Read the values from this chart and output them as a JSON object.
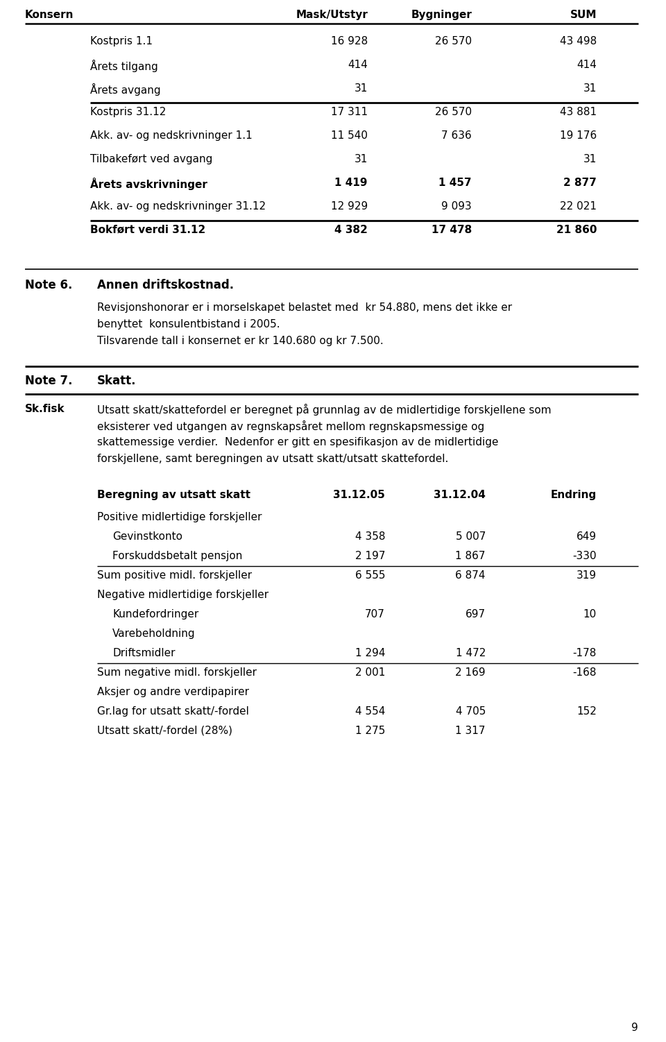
{
  "bg_color": "#ffffff",
  "page_number": "9",
  "section1_header": {
    "col0": "Konsern",
    "col1": "Mask/Utstyr",
    "col2": "Bygninger",
    "col3": "SUM"
  },
  "section1_rows": [
    {
      "label": "Kostpris 1.1",
      "c1": "16 928",
      "c2": "26 570",
      "c3": "43 498",
      "bold": false,
      "line_after": false
    },
    {
      "label": "Årets tilgang",
      "c1": "414",
      "c2": "",
      "c3": "414",
      "bold": false,
      "line_after": false
    },
    {
      "label": "Årets avgang",
      "c1": "31",
      "c2": "",
      "c3": "31",
      "bold": false,
      "line_after": true
    },
    {
      "label": "Kostpris 31.12",
      "c1": "17 311",
      "c2": "26 570",
      "c3": "43 881",
      "bold": false,
      "line_after": false
    },
    {
      "label": "Akk. av- og nedskrivninger 1.1",
      "c1": "11 540",
      "c2": "7 636",
      "c3": "19 176",
      "bold": false,
      "line_after": false
    },
    {
      "label": "Tilbakeført ved avgang",
      "c1": "31",
      "c2": "",
      "c3": "31",
      "bold": false,
      "line_after": false
    },
    {
      "label": "Årets avskrivninger",
      "c1": "1 419",
      "c2": "1 457",
      "c3": "2 877",
      "bold": true,
      "line_after": false
    },
    {
      "label": "Akk. av- og nedskrivninger 31.12",
      "c1": "12 929",
      "c2": "9 093",
      "c3": "22 021",
      "bold": false,
      "line_after": true
    },
    {
      "label": "Bokført verdi 31.12",
      "c1": "4 382",
      "c2": "17 478",
      "c3": "21 860",
      "bold": true,
      "line_after": false
    }
  ],
  "note6_label": "Note 6.",
  "note6_title": "Annen driftskostnad.",
  "note6_text1": "Revisjonshonorar er i morselskapet belastet med  kr 54.880, mens det ikke er",
  "note6_text2": "benyttet  konsulentbistand i 2005.",
  "note6_text3": "Tilsvarende tall i konsernet er kr 140.680 og kr 7.500.",
  "note7_label": "Note 7.",
  "note7_title": "Skatt.",
  "skfisk_label": "Sk.fisk",
  "skfisk_lines": [
    "Utsatt skatt/skattefordel er beregnet på grunnlag av de midlertidige forskjellene som",
    "eksisterer ved utgangen av regnskapsåret mellom regnskapsmessige og",
    "skattemessige verdier.  Nedenfor er gitt en spesifikasjon av de midlertidige",
    "forskjellene, samt beregningen av utsatt skatt/utsatt skattefordel."
  ],
  "table2_header": {
    "col0": "Beregning av utsatt skatt",
    "col1": "31.12.05",
    "col2": "31.12.04",
    "col3": "Endring"
  },
  "table2_rows": [
    {
      "label": "Positive midlertidige forskjeller",
      "c1": "",
      "c2": "",
      "c3": "",
      "bold": false,
      "indent": false,
      "line_after": false
    },
    {
      "label": "Gevinstkonto",
      "c1": "4 358",
      "c2": "5 007",
      "c3": "649",
      "bold": false,
      "indent": true,
      "line_after": false
    },
    {
      "label": "Forskuddsbetalt pensjon",
      "c1": "2 197",
      "c2": "1 867",
      "c3": "-330",
      "bold": false,
      "indent": true,
      "line_after": true
    },
    {
      "label": "Sum positive midl. forskjeller",
      "c1": "6 555",
      "c2": "6 874",
      "c3": "319",
      "bold": false,
      "indent": false,
      "line_after": false
    },
    {
      "label": "Negative midlertidige forskjeller",
      "c1": "",
      "c2": "",
      "c3": "",
      "bold": false,
      "indent": false,
      "line_after": false
    },
    {
      "label": "Kundefordringer",
      "c1": "707",
      "c2": "697",
      "c3": "10",
      "bold": false,
      "indent": true,
      "line_after": false
    },
    {
      "label": "Varebeholdning",
      "c1": "",
      "c2": "",
      "c3": "",
      "bold": false,
      "indent": true,
      "line_after": false
    },
    {
      "label": "Driftsmidler",
      "c1": "1 294",
      "c2": "1 472",
      "c3": "-178",
      "bold": false,
      "indent": true,
      "line_after": true
    },
    {
      "label": "Sum negative midl. forskjeller",
      "c1": "2 001",
      "c2": "2 169",
      "c3": "-168",
      "bold": false,
      "indent": false,
      "line_after": false
    },
    {
      "label": "Aksjer og andre verdipapirer",
      "c1": "",
      "c2": "",
      "c3": "",
      "bold": false,
      "indent": false,
      "line_after": false
    },
    {
      "label": "Gr.lag for utsatt skatt/-fordel",
      "c1": "4 554",
      "c2": "4 705",
      "c3": "152",
      "bold": false,
      "indent": false,
      "line_after": false
    },
    {
      "label": "Utsatt skatt/-fordel (28%)",
      "c1": "1 275",
      "c2": "1 317",
      "c3": "",
      "bold": false,
      "indent": false,
      "line_after": false
    }
  ]
}
